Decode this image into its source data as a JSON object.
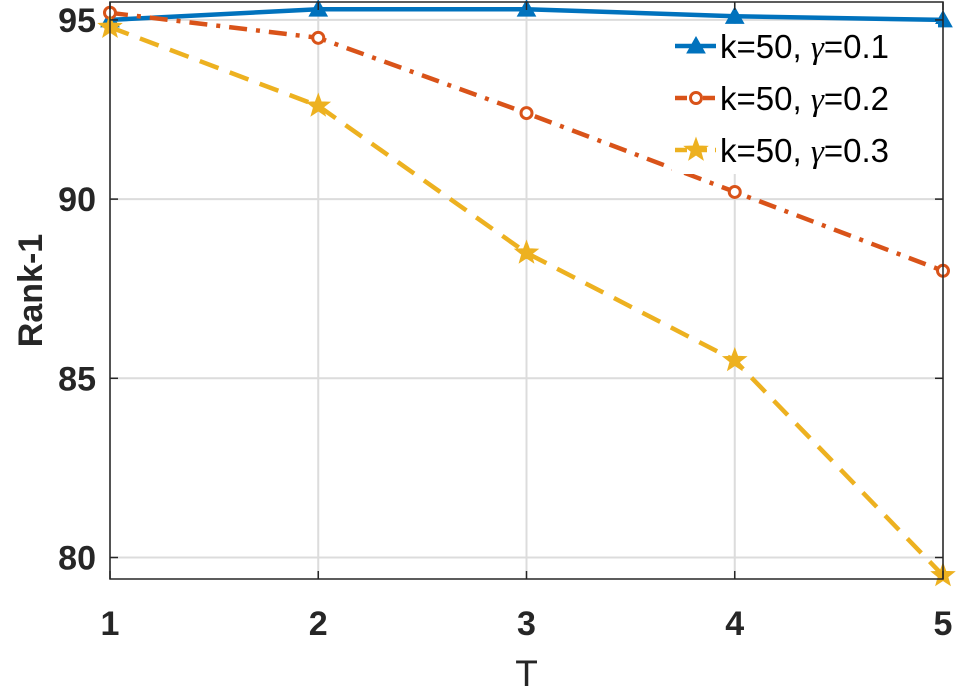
{
  "chart_data": {
    "type": "line",
    "xlabel": "T",
    "ylabel": "Rank-1",
    "x": [
      1,
      2,
      3,
      4,
      5
    ],
    "xlim": [
      1,
      5
    ],
    "ylim": [
      79.4,
      95.5
    ],
    "xticks": [
      "1",
      "2",
      "3",
      "4",
      "5"
    ],
    "yticks": [
      "80",
      "85",
      "90",
      "95"
    ],
    "grid": true,
    "legend_position": "top-right",
    "series": [
      {
        "name": "k=50, γ=0.1",
        "name_parts": {
          "prefix": "k=50, ",
          "symbol": "γ",
          "suffix": "=0.1"
        },
        "values": [
          95.0,
          95.3,
          95.3,
          95.1,
          95.0
        ],
        "color": "#0072BD",
        "line_style": "solid",
        "marker": "triangle"
      },
      {
        "name": "k=50, γ=0.2",
        "name_parts": {
          "prefix": "k=50, ",
          "symbol": "γ",
          "suffix": "=0.2"
        },
        "values": [
          95.2,
          94.5,
          92.4,
          90.2,
          88.0
        ],
        "color": "#D95319",
        "line_style": "dash-dot",
        "marker": "circle"
      },
      {
        "name": "k=50, γ=0.3",
        "name_parts": {
          "prefix": "k=50, ",
          "symbol": "γ",
          "suffix": "=0.3"
        },
        "values": [
          94.8,
          92.6,
          88.5,
          85.5,
          79.5
        ],
        "color": "#EDB120",
        "line_style": "dashed",
        "marker": "star"
      }
    ]
  }
}
